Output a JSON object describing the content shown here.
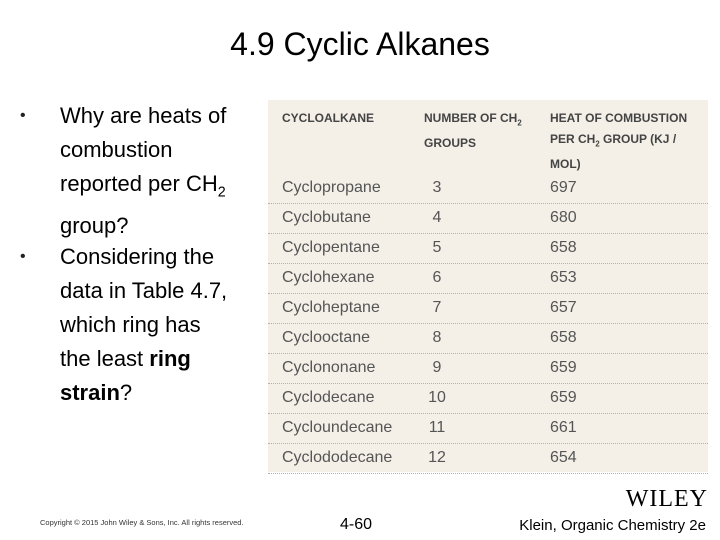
{
  "header": {
    "title": "4.9 Cyclic Alkanes"
  },
  "bullets": [
    {
      "parts": [
        {
          "text": "Why are heats of combustion reported per CH"
        },
        {
          "text": "2",
          "sub": true
        },
        {
          "text": " group?"
        }
      ]
    },
    {
      "parts": [
        {
          "text": "Considering the data in Table 4.7, which ring has the least "
        },
        {
          "text": "ring strain",
          "bold": true
        },
        {
          "text": "?"
        }
      ]
    }
  ],
  "table": {
    "headers": [
      {
        "parts": [
          {
            "text": "CYCLOALKANE"
          }
        ]
      },
      {
        "parts": [
          {
            "text": "NUMBER OF CH"
          },
          {
            "text": "2",
            "sub": true
          },
          {
            "text": " GROUPS"
          }
        ]
      },
      {
        "parts": [
          {
            "text": "HEAT OF COMBUSTION PER CH"
          },
          {
            "text": "2",
            "sub": true
          },
          {
            "text": " GROUP (KJ / MOL)"
          }
        ]
      }
    ],
    "rows": [
      [
        "Cyclopropane",
        "3",
        "697"
      ],
      [
        "Cyclobutane",
        "4",
        "680"
      ],
      [
        "Cyclopentane",
        "5",
        "658"
      ],
      [
        "Cyclohexane",
        "6",
        "653"
      ],
      [
        "Cycloheptane",
        "7",
        "657"
      ],
      [
        "Cyclooctane",
        "8",
        "658"
      ],
      [
        "Cyclononane",
        "9",
        "659"
      ],
      [
        "Cyclodecane",
        "10",
        "659"
      ],
      [
        "Cycloundecane",
        "11",
        "661"
      ],
      [
        "Cyclododecane",
        "12",
        "654"
      ]
    ]
  },
  "footer": {
    "copyright": "Copyright © 2015 John Wiley & Sons, Inc. All rights reserved.",
    "page": "4-60",
    "credit": "Klein, Organic Chemistry 2e",
    "logo": "WILEY"
  }
}
